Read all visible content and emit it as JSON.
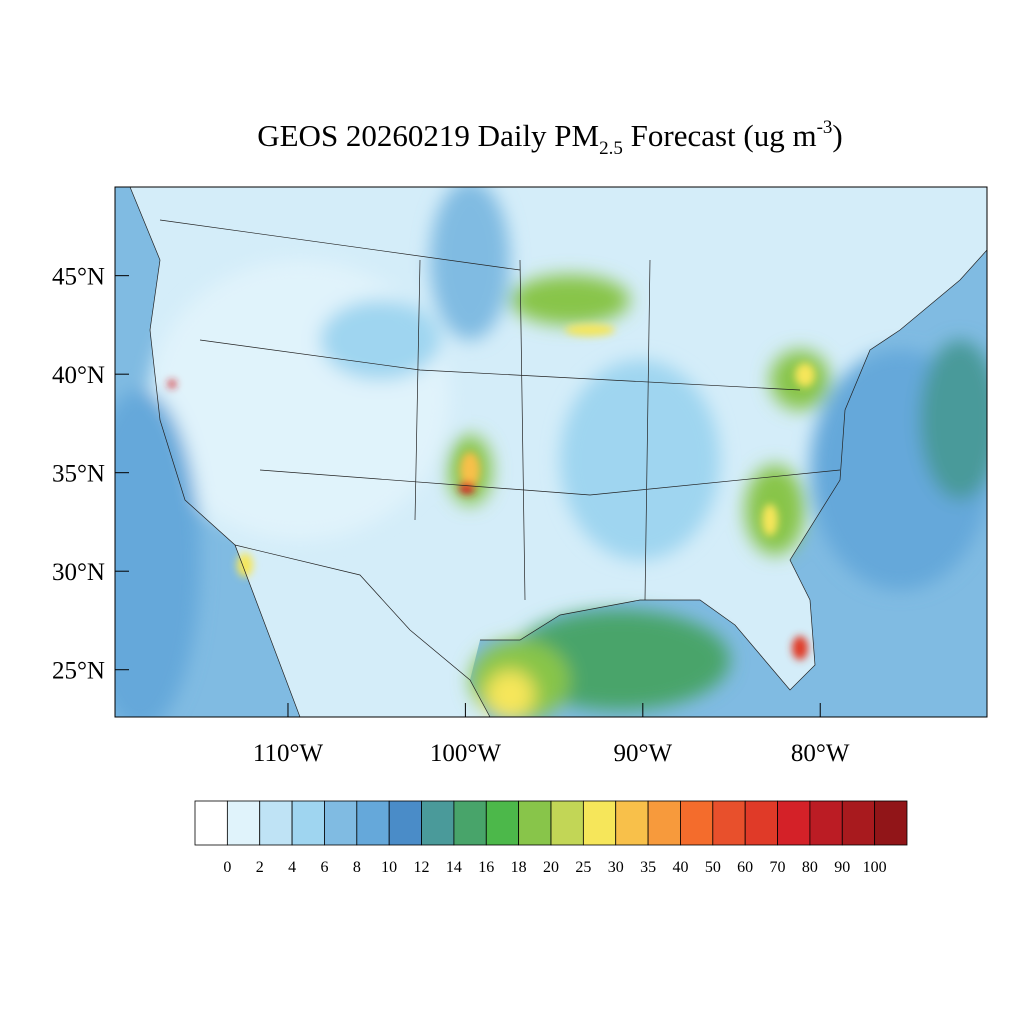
{
  "map": {
    "title": {
      "main": "GEOS 20260219 Daily PM",
      "sub": "2.5",
      "mid": " Forecast (ug m",
      "sup": "-3",
      "end": ")"
    },
    "lonlim": [
      -119.75,
      -70.6
    ],
    "latlim": [
      22.6,
      49.5
    ],
    "lon_ticks": [
      {
        "value": -110,
        "label": "110°W"
      },
      {
        "value": -100,
        "label": "100°W"
      },
      {
        "value": -90,
        "label": "90°W"
      },
      {
        "value": -80,
        "label": "80°W"
      }
    ],
    "lat_ticks": [
      {
        "value": 45,
        "label": "45°N"
      },
      {
        "value": 40,
        "label": "40°N"
      },
      {
        "value": 35,
        "label": "35°N"
      },
      {
        "value": 30,
        "label": "30°N"
      },
      {
        "value": 25,
        "label": "25°N"
      }
    ],
    "colorbar": {
      "levels": [
        0,
        2,
        4,
        6,
        8,
        10,
        12,
        14,
        16,
        18,
        20,
        25,
        30,
        35,
        40,
        50,
        60,
        70,
        80,
        90,
        100
      ],
      "colors": [
        "#ffffff",
        "#e0f3fb",
        "#bfe3f5",
        "#9fd5f0",
        "#80bbe2",
        "#65a8da",
        "#4a8cc8",
        "#4a9a9a",
        "#48a46a",
        "#4cb84a",
        "#88c54a",
        "#c2d656",
        "#f6e65a",
        "#f8c04a",
        "#f79a3c",
        "#f46c2c",
        "#e8502c",
        "#e03a28",
        "#d42128",
        "#bb1c24",
        "#a81a1e",
        "#911518"
      ]
    }
  }
}
